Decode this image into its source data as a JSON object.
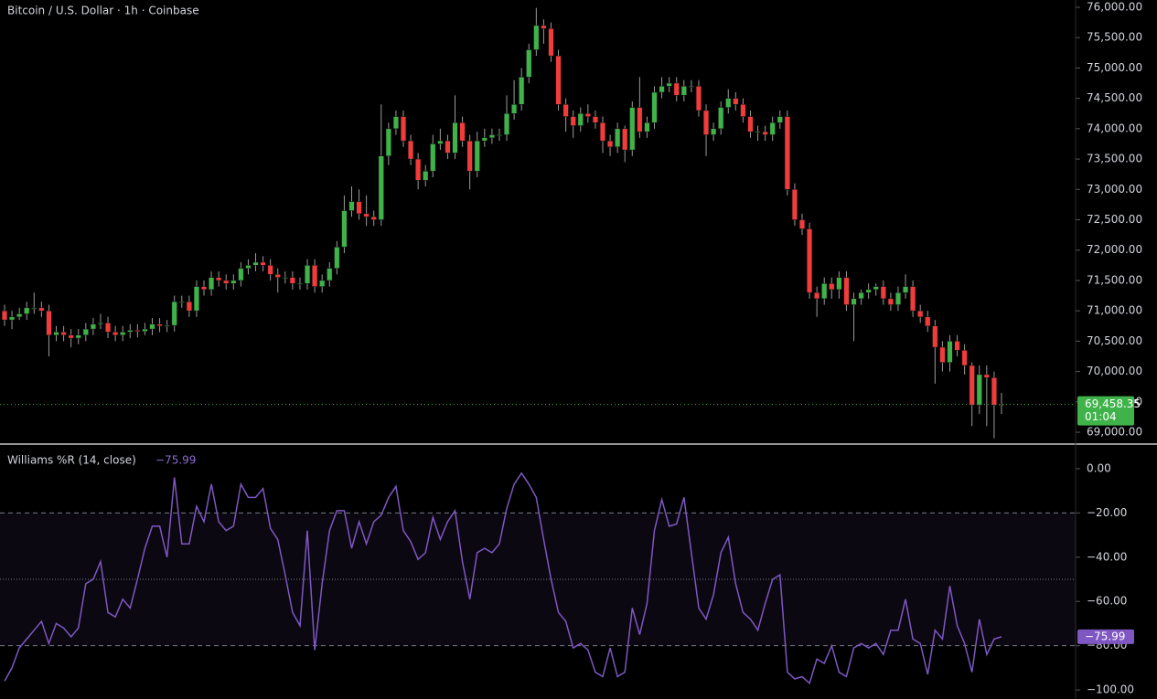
{
  "chart_data": [
    {
      "type": "candlestick",
      "title": "Bitcoin / U.S. Dollar · 1h · Coinbase",
      "up_color": "#3fb34a",
      "down_color": "#f23b3b",
      "wick_color": "#9a9a9a",
      "open": [
        71000,
        70850,
        70900,
        70950,
        71050,
        71050,
        71000,
        70600,
        70650,
        70600,
        70550,
        70600,
        70700,
        70780,
        70800,
        70650,
        70600,
        70650,
        70680,
        70660,
        70700,
        70780,
        70750,
        70760,
        71150,
        71150,
        71000,
        71400,
        71350,
        71550,
        71500,
        71450,
        71500,
        71700,
        71750,
        71800,
        71750,
        71600,
        71550,
        71550,
        71450,
        71450,
        71750,
        71400,
        71500,
        71700,
        72050,
        72650,
        72800,
        72600,
        72550,
        72500,
        73550,
        74000,
        74200,
        73800,
        73500,
        73150,
        73300,
        73750,
        73800,
        73600,
        74100,
        73800,
        73300,
        73800,
        73850,
        73900,
        73900,
        74250,
        74400,
        74850,
        75300,
        75700,
        75650,
        75200,
        74400,
        74200,
        74050,
        74250,
        74200,
        74100,
        73800,
        73700,
        74000,
        73650,
        74350,
        73950,
        74100,
        74600,
        74700,
        74750,
        74550,
        74700,
        74700,
        74300,
        73900,
        74000,
        74350,
        74500,
        74400,
        74200,
        73950,
        73950,
        73900,
        74100,
        74200,
        73000,
        72500,
        72350,
        71300,
        71200,
        71450,
        71350,
        71550,
        71100,
        71200,
        71300,
        71350,
        71400,
        71200,
        71100,
        71300,
        71400,
        71000,
        70900,
        70750,
        70400,
        70150,
        70500,
        70350,
        70100,
        69450,
        69950,
        69900,
        69450
      ],
      "high": [
        71100,
        71000,
        71050,
        71150,
        71300,
        71150,
        71100,
        70750,
        70750,
        70700,
        70700,
        70800,
        70880,
        70950,
        70900,
        70750,
        70750,
        70780,
        70780,
        70800,
        70880,
        70880,
        70850,
        71250,
        71250,
        71250,
        71500,
        71500,
        71650,
        71650,
        71600,
        71600,
        71800,
        71850,
        71950,
        71900,
        71850,
        71700,
        71650,
        71650,
        71550,
        71850,
        71850,
        71600,
        71800,
        72150,
        72900,
        73050,
        73000,
        72900,
        72650,
        74400,
        74100,
        74300,
        74300,
        73900,
        73600,
        73400,
        73900,
        74000,
        73900,
        74550,
        74200,
        73900,
        73950,
        74000,
        74000,
        74000,
        74550,
        74800,
        75000,
        75400,
        75990,
        75800,
        75750,
        75300,
        74500,
        74300,
        74350,
        74400,
        74300,
        74200,
        73900,
        74100,
        74050,
        74450,
        74850,
        74200,
        74700,
        74850,
        74850,
        74850,
        74800,
        74800,
        74800,
        74400,
        74100,
        74450,
        74650,
        74600,
        74500,
        74300,
        74050,
        74050,
        74200,
        74300,
        74300,
        73100,
        72600,
        72450,
        71400,
        71550,
        71550,
        71650,
        71650,
        71300,
        71350,
        71450,
        71450,
        71500,
        71300,
        71400,
        71600,
        71500,
        71100,
        71000,
        70850,
        70500,
        70600,
        70600,
        70450,
        70150,
        70100,
        70100,
        70000,
        69650
      ],
      "low": [
        70750,
        70700,
        70850,
        70850,
        70950,
        70900,
        70250,
        70500,
        70500,
        70400,
        70450,
        70500,
        70600,
        70700,
        70550,
        70500,
        70500,
        70550,
        70560,
        70600,
        70600,
        70650,
        70650,
        70660,
        71050,
        70900,
        70900,
        71250,
        71250,
        71400,
        71350,
        71350,
        71400,
        71600,
        71650,
        71650,
        71500,
        71300,
        71450,
        71350,
        71350,
        71350,
        71300,
        71300,
        71400,
        71600,
        71950,
        72550,
        72500,
        72400,
        72400,
        72400,
        73400,
        73900,
        73700,
        73400,
        73000,
        73050,
        73200,
        73650,
        73500,
        73500,
        73700,
        73000,
        73200,
        73700,
        73750,
        73800,
        73800,
        74150,
        74300,
        74750,
        75200,
        75400,
        75100,
        74300,
        73950,
        73850,
        73950,
        74100,
        74000,
        73600,
        73550,
        73600,
        73450,
        73550,
        73850,
        73850,
        74000,
        74500,
        74600,
        74450,
        74450,
        74600,
        74200,
        73550,
        73800,
        73900,
        74250,
        74300,
        74100,
        73850,
        73800,
        73800,
        73800,
        74000,
        72900,
        72400,
        72250,
        71200,
        70900,
        71100,
        71200,
        71200,
        71000,
        70500,
        71100,
        71200,
        71250,
        71100,
        71000,
        71000,
        71200,
        70900,
        70800,
        70650,
        69800,
        70000,
        70000,
        70250,
        69950,
        69100,
        69300,
        69100,
        68900,
        69300
      ],
      "close": [
        70850,
        70900,
        70950,
        71050,
        71050,
        71000,
        70600,
        70650,
        70600,
        70550,
        70600,
        70700,
        70780,
        70800,
        70650,
        70600,
        70650,
        70680,
        70660,
        70700,
        70780,
        70750,
        70760,
        71150,
        71150,
        71000,
        71400,
        71350,
        71550,
        71500,
        71450,
        71500,
        71700,
        71750,
        71800,
        71750,
        71600,
        71550,
        71550,
        71450,
        71450,
        71750,
        71400,
        71500,
        71700,
        72050,
        72650,
        72800,
        72600,
        72550,
        72500,
        73550,
        74000,
        74200,
        73800,
        73500,
        73150,
        73300,
        73750,
        73800,
        73600,
        74100,
        73800,
        73300,
        73800,
        73850,
        73900,
        73900,
        74250,
        74400,
        74850,
        75300,
        75700,
        75650,
        75200,
        74400,
        74200,
        74050,
        74250,
        74200,
        74100,
        73800,
        73700,
        74000,
        73650,
        74350,
        73950,
        74100,
        74600,
        74700,
        74750,
        74550,
        74700,
        74700,
        74300,
        73900,
        74000,
        74350,
        74500,
        74400,
        74200,
        73950,
        73950,
        73900,
        74100,
        74200,
        73000,
        72500,
        72350,
        71300,
        71200,
        71450,
        71350,
        71550,
        71100,
        71200,
        71300,
        71350,
        71400,
        71200,
        71100,
        71300,
        71400,
        71000,
        70900,
        70750,
        70400,
        70150,
        70500,
        70350,
        70100,
        69450,
        69950,
        69900,
        69450,
        69458.35
      ],
      "last_price_label": "69,458.35",
      "countdown": "01:04",
      "ylim": [
        68820,
        76120
      ],
      "yticks": [
        {
          "value": 69000,
          "label": "69,000.00"
        },
        {
          "value": 69500,
          "label": "69,500.00"
        },
        {
          "value": 70000,
          "label": "70,000.00"
        },
        {
          "value": 70500,
          "label": "70,500.00"
        },
        {
          "value": 71000,
          "label": "71,000.00"
        },
        {
          "value": 71500,
          "label": "71,500.00"
        },
        {
          "value": 72000,
          "label": "72,000.00"
        },
        {
          "value": 72500,
          "label": "72,500.00"
        },
        {
          "value": 73000,
          "label": "73,000.00"
        },
        {
          "value": 73500,
          "label": "73,500.00"
        },
        {
          "value": 74000,
          "label": "74,000.00"
        },
        {
          "value": 74500,
          "label": "74,500.00"
        },
        {
          "value": 75000,
          "label": "75,000.00"
        },
        {
          "value": 75500,
          "label": "75,500.00"
        },
        {
          "value": 76000,
          "label": "76,000.00"
        }
      ]
    },
    {
      "type": "line",
      "title": "Williams %R (14, close)",
      "color": "#7e57c2",
      "values": [
        -96,
        -90,
        -81,
        -77,
        -73,
        -69,
        -79,
        -70,
        -72,
        -76,
        -72,
        -52,
        -50,
        -42,
        -65,
        -67,
        -59,
        -63,
        -50,
        -36,
        -26,
        -26,
        -40,
        -4,
        -34,
        -34,
        -17,
        -24,
        -7,
        -24,
        -28,
        -26,
        -7,
        -13,
        -13,
        -9,
        -27,
        -32,
        -48,
        -65,
        -71,
        -28,
        -82,
        -52,
        -28,
        -19,
        -19,
        -36,
        -24,
        -34,
        -24,
        -21,
        -13,
        -8,
        -28,
        -33,
        -41,
        -38,
        -22,
        -32,
        -24,
        -19,
        -42,
        -59,
        -38,
        -36,
        -38,
        -34,
        -18,
        -7,
        -2,
        -7,
        -13,
        -32,
        -50,
        -65,
        -69,
        -81,
        -79,
        -82,
        -92,
        -94,
        -81,
        -94,
        -92,
        -63,
        -75,
        -61,
        -28,
        -14,
        -26,
        -25,
        -13,
        -38,
        -63,
        -68,
        -57,
        -38,
        -31,
        -52,
        -65,
        -68,
        -73,
        -61,
        -50,
        -48,
        -92,
        -95,
        -94,
        -97,
        -86,
        -88,
        -80,
        -92,
        -94,
        -81,
        -79,
        -81,
        -79,
        -84,
        -73,
        -73,
        -59,
        -77,
        -79,
        -93,
        -73,
        -77,
        -53,
        -71,
        -79,
        -92,
        -68,
        -84,
        -77,
        -75.99
      ],
      "last_value_label": "−75.99",
      "bands": {
        "upper": -20,
        "middle": -50,
        "lower": -80
      },
      "ylim": [
        -104.1,
        10.7
      ],
      "yticks": [
        {
          "value": 0,
          "label": "0.00"
        },
        {
          "value": -20,
          "label": "−20.00"
        },
        {
          "value": -40,
          "label": "−40.00"
        },
        {
          "value": -60,
          "label": "−60.00"
        },
        {
          "value": -80,
          "label": "−80.00"
        },
        {
          "value": -100,
          "label": "−100.00"
        }
      ]
    }
  ]
}
